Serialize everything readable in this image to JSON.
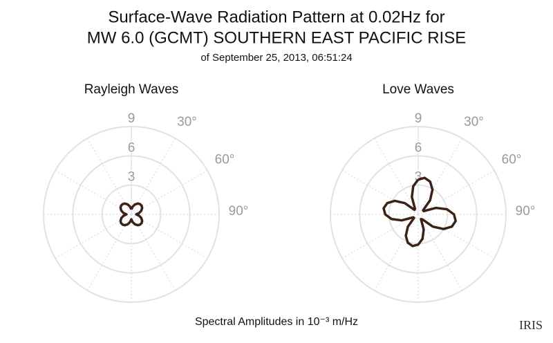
{
  "title": [
    "Surface-Wave Radiation Pattern at 0.02Hz for",
    "MW 6.0 (GCMT) SOUTHERN EAST PACIFIC RISE"
  ],
  "subtitle": "of September 25, 2013, 06:51:24",
  "footer": "Spectral Amplitudes in 10⁻³ m/Hz",
  "logo": "IRIS",
  "chart_data": [
    {
      "type": "polar",
      "title": "Rayleigh Waves",
      "color": "#3b2217",
      "rlim": [
        0,
        9
      ],
      "rticks": [
        3,
        6,
        9
      ],
      "thetaticks": [
        {
          "value": 30,
          "label": "30°"
        },
        {
          "value": 60,
          "label": "60°"
        },
        {
          "value": 90,
          "label": "90°"
        }
      ],
      "theta": [
        0,
        10,
        20,
        30,
        40,
        50,
        60,
        70,
        80,
        90,
        100,
        110,
        120,
        130,
        140,
        150,
        160,
        170,
        180,
        190,
        200,
        210,
        220,
        230,
        240,
        250,
        260,
        270,
        280,
        290,
        300,
        310,
        320,
        330,
        340,
        350,
        360
      ],
      "values": [
        0.5,
        0.81,
        1.08,
        1.28,
        1.38,
        1.38,
        1.28,
        1.08,
        0.81,
        0.5,
        0.81,
        1.08,
        1.28,
        1.38,
        1.38,
        1.28,
        1.08,
        0.81,
        0.5,
        0.81,
        1.08,
        1.28,
        1.38,
        1.38,
        1.28,
        1.08,
        0.81,
        0.5,
        0.81,
        1.08,
        1.28,
        1.38,
        1.38,
        1.28,
        1.08,
        0.81,
        0.5
      ]
    },
    {
      "type": "polar",
      "title": "Love Waves",
      "color": "#3b2217",
      "rlim": [
        0,
        9
      ],
      "rticks": [
        3,
        6,
        9
      ],
      "thetaticks": [
        {
          "value": 30,
          "label": "30°"
        },
        {
          "value": 60,
          "label": "60°"
        },
        {
          "value": 90,
          "label": "90°"
        }
      ],
      "theta": [
        0,
        10,
        20,
        30,
        40,
        50,
        60,
        70,
        80,
        90,
        100,
        110,
        120,
        130,
        140,
        150,
        160,
        170,
        180,
        190,
        200,
        210,
        220,
        230,
        240,
        250,
        260,
        270,
        280,
        290,
        300,
        310,
        320,
        330,
        340,
        350,
        360
      ],
      "values": [
        3.57,
        3.8,
        3.57,
        2.93,
        1.9,
        0.65,
        0.66,
        1.95,
        3.0,
        3.67,
        3.9,
        3.67,
        3.0,
        1.95,
        0.66,
        0.56,
        1.65,
        2.54,
        3.1,
        3.3,
        3.1,
        2.54,
        1.65,
        0.56,
        0.61,
        1.8,
        2.77,
        3.38,
        3.6,
        3.38,
        2.77,
        1.8,
        0.61,
        0.65,
        1.9,
        2.93,
        3.57
      ]
    }
  ]
}
